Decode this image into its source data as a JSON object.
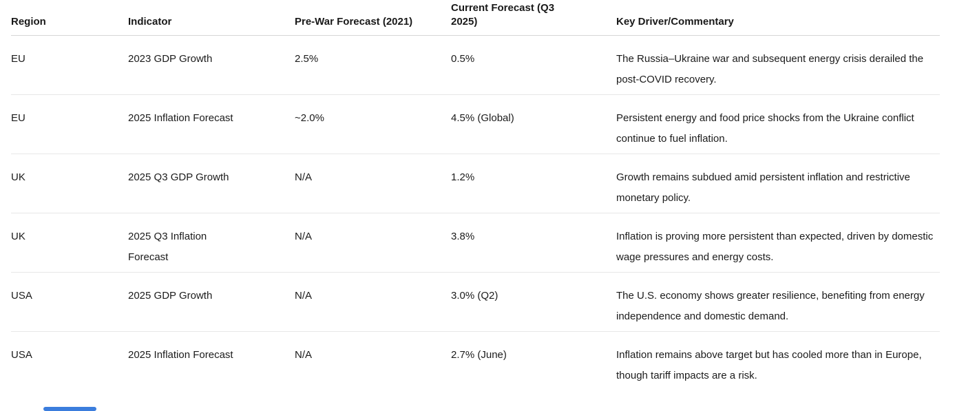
{
  "colors": {
    "text": "#1b1b1b",
    "header_divider": "#d6d6d6",
    "row_divider": "#e7e7e7",
    "scrollbar_thumb": "#3b7ddd"
  },
  "table": {
    "columns": [
      {
        "label": "Region"
      },
      {
        "label": "Indicator"
      },
      {
        "label": "Pre-War Forecast (2021)"
      },
      {
        "label": "Current Forecast (Q3 2025)"
      },
      {
        "label": "Key Driver/Commentary"
      }
    ],
    "rows": [
      {
        "region": "EU",
        "indicator": "2023 GDP Growth",
        "pre_war": "2.5%",
        "current": "0.5%",
        "commentary": "The Russia–Ukraine war and subsequent energy crisis derailed the post-COVID recovery."
      },
      {
        "region": "EU",
        "indicator": "2025 Inflation Forecast",
        "pre_war": "~2.0%",
        "current": "4.5% (Global)",
        "commentary": "Persistent energy and food price shocks from the Ukraine conflict continue to fuel inflation."
      },
      {
        "region": "UK",
        "indicator": "2025 Q3 GDP Growth",
        "pre_war": "N/A",
        "current": "1.2%",
        "commentary": "Growth remains subdued amid persistent inflation and restrictive monetary policy."
      },
      {
        "region": "UK",
        "indicator": "2025 Q3 Inflation Forecast",
        "pre_war": "N/A",
        "current": "3.8%",
        "commentary": "Inflation is proving more persistent than expected, driven by domestic wage pressures and energy costs."
      },
      {
        "region": "USA",
        "indicator": "2025 GDP Growth",
        "pre_war": "N/A",
        "current": "3.0% (Q2)",
        "commentary": "The U.S. economy shows greater resilience, benefiting from energy independence and domestic demand."
      },
      {
        "region": "USA",
        "indicator": "2025 Inflation Forecast",
        "pre_war": "N/A",
        "current": "2.7% (June)",
        "commentary": "Inflation remains above target but has cooled more than in Europe, though tariff impacts are a risk."
      }
    ]
  }
}
